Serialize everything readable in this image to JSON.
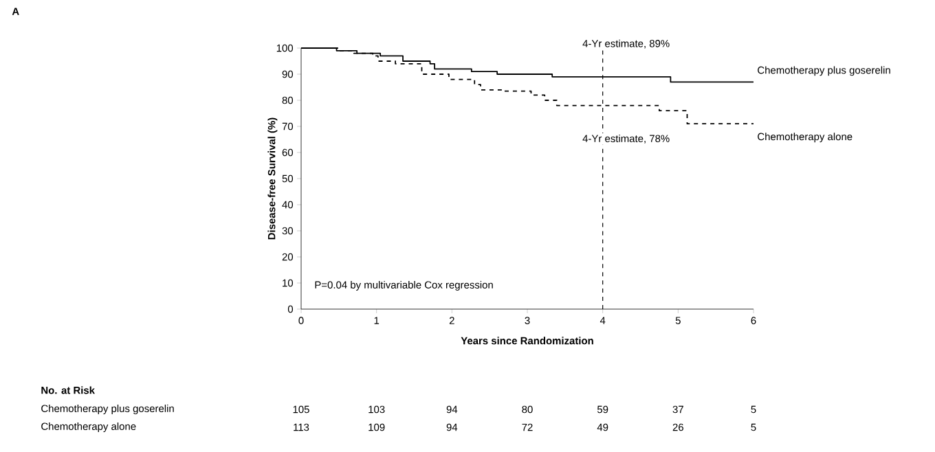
{
  "chart_data": {
    "type": "step",
    "title": "A",
    "xlabel": "Years since Randomization",
    "ylabel": "Disease-free Survival (%)",
    "xlim": [
      0,
      6
    ],
    "ylim": [
      0,
      100
    ],
    "xticks": [
      0,
      1,
      2,
      3,
      4,
      5,
      6
    ],
    "yticks": [
      0,
      10,
      20,
      30,
      40,
      50,
      60,
      70,
      80,
      90,
      100
    ],
    "grid": false,
    "legend": false,
    "marker": "none",
    "series": [
      {
        "name": "Chemotherapy plus goserelin",
        "color": "#000000",
        "line_style": "solid",
        "x": [
          0,
          0.47,
          0.74,
          1.05,
          1.35,
          1.71,
          1.77,
          2.26,
          2.6,
          3.33,
          4.9,
          6.0
        ],
        "values": [
          100,
          99,
          98,
          97,
          95,
          94,
          92,
          91,
          90,
          89,
          87,
          87
        ]
      },
      {
        "name": "Chemotherapy alone",
        "color": "#000000",
        "line_style": "dashed",
        "x": [
          0,
          0.5,
          0.7,
          0.95,
          1.02,
          1.25,
          1.6,
          1.96,
          2.3,
          2.38,
          2.69,
          3.05,
          3.23,
          3.39,
          4.75,
          5.12,
          6.0
        ],
        "values": [
          100,
          99,
          98,
          97,
          95,
          94,
          90,
          88,
          86,
          84,
          83.5,
          82,
          80,
          78,
          76,
          71,
          71
        ]
      }
    ],
    "ref_lines": [
      {
        "axis": "x",
        "value": 4,
        "line_style": "dashed",
        "color": "#000000"
      }
    ],
    "annotations": [
      {
        "text": "4-Yr estimate, 89%",
        "x": 4,
        "y": 89
      },
      {
        "text": "4-Yr estimate, 78%",
        "x": 4,
        "y": 78
      },
      "P=0.04 by multivariable Cox regression",
      "No. at Risk",
      "Chemotherapy plus goserelin",
      "105",
      "103",
      "94",
      "80",
      "59",
      "37",
      "5",
      "Chemotherapy alone",
      "113",
      "109",
      "94",
      "72",
      "49",
      "26",
      "5"
    ]
  }
}
